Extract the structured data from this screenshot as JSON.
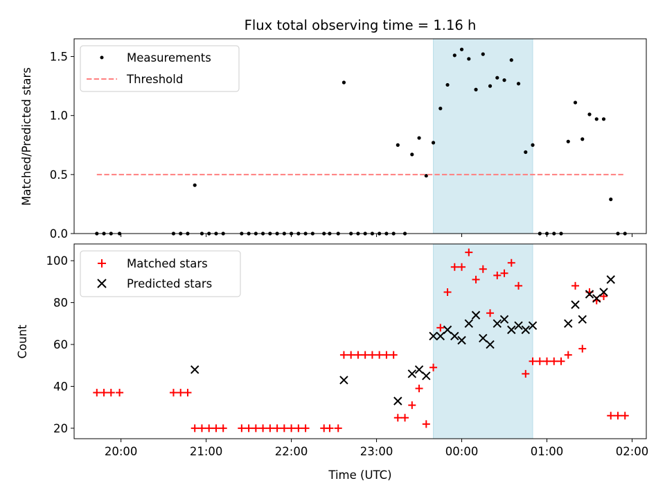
{
  "chart_data": [
    {
      "type": "scatter",
      "title": "Flux total observing time = 1.16 h",
      "ylabel": "Matched/Predicted stars",
      "xlim": [
        "19:27",
        "02:10"
      ],
      "ylim": [
        0,
        1.65
      ],
      "xticks": [
        "20:00",
        "21:00",
        "22:00",
        "23:00",
        "00:00",
        "01:00",
        "02:00"
      ],
      "yticks": [
        "0.0",
        "0.5",
        "1.0",
        "1.5"
      ],
      "legend_position": "upper-left",
      "highlight_span": [
        "23:40",
        "00:50"
      ],
      "series": [
        {
          "name": "Measurements",
          "marker": "dot",
          "color": "#000000",
          "points": [
            [
              "19:43",
              0
            ],
            [
              "19:48",
              0
            ],
            [
              "19:53",
              0
            ],
            [
              "19:59",
              0
            ],
            [
              "20:37",
              0
            ],
            [
              "20:42",
              0
            ],
            [
              "20:47",
              0
            ],
            [
              "20:52",
              0.41
            ],
            [
              "20:57",
              0
            ],
            [
              "21:02",
              0
            ],
            [
              "21:07",
              0
            ],
            [
              "21:12",
              0
            ],
            [
              "21:25",
              0
            ],
            [
              "21:30",
              0
            ],
            [
              "21:35",
              0
            ],
            [
              "21:40",
              0
            ],
            [
              "21:45",
              0
            ],
            [
              "21:50",
              0
            ],
            [
              "21:55",
              0
            ],
            [
              "22:00",
              0
            ],
            [
              "22:05",
              0
            ],
            [
              "22:10",
              0
            ],
            [
              "22:15",
              0
            ],
            [
              "22:23",
              0
            ],
            [
              "22:27",
              0
            ],
            [
              "22:33",
              0
            ],
            [
              "22:37",
              1.28
            ],
            [
              "22:42",
              0
            ],
            [
              "22:47",
              0
            ],
            [
              "22:52",
              0
            ],
            [
              "22:57",
              0
            ],
            [
              "23:02",
              0
            ],
            [
              "23:07",
              0
            ],
            [
              "23:12",
              0
            ],
            [
              "23:15",
              0.75
            ],
            [
              "23:20",
              0
            ],
            [
              "23:25",
              0.67
            ],
            [
              "23:30",
              0.81
            ],
            [
              "23:35",
              0.49
            ],
            [
              "23:40",
              0.77
            ],
            [
              "23:45",
              1.06
            ],
            [
              "23:50",
              1.26
            ],
            [
              "23:55",
              1.51
            ],
            [
              "24:00",
              1.56
            ],
            [
              "24:05",
              1.48
            ],
            [
              "24:10",
              1.22
            ],
            [
              "24:15",
              1.52
            ],
            [
              "24:20",
              1.25
            ],
            [
              "24:25",
              1.32
            ],
            [
              "24:30",
              1.3
            ],
            [
              "24:35",
              1.47
            ],
            [
              "24:40",
              1.27
            ],
            [
              "24:45",
              0.69
            ],
            [
              "24:50",
              0.75
            ],
            [
              "24:55",
              0
            ],
            [
              "25:00",
              0
            ],
            [
              "25:05",
              0
            ],
            [
              "25:10",
              0
            ],
            [
              "25:15",
              0.78
            ],
            [
              "25:20",
              1.11
            ],
            [
              "25:25",
              0.8
            ],
            [
              "25:30",
              1.01
            ],
            [
              "25:35",
              0.97
            ],
            [
              "25:40",
              0.97
            ],
            [
              "25:45",
              0.29
            ],
            [
              "25:50",
              0
            ],
            [
              "25:55",
              0
            ]
          ]
        },
        {
          "name": "Threshold",
          "marker": "dashed-line",
          "color": "#ff7f7f",
          "points": [
            [
              "19:43",
              0.5
            ],
            [
              "25:55",
              0.5
            ]
          ]
        }
      ]
    },
    {
      "type": "scatter",
      "ylabel": "Count",
      "xlabel": "Time (UTC)",
      "xlim": [
        "19:27",
        "02:10"
      ],
      "ylim": [
        15,
        108
      ],
      "xticks": [
        "20:00",
        "21:00",
        "22:00",
        "23:00",
        "00:00",
        "01:00",
        "02:00"
      ],
      "yticks": [
        "20",
        "40",
        "60",
        "80",
        "100"
      ],
      "legend_position": "upper-left",
      "highlight_span": [
        "23:40",
        "00:50"
      ],
      "series": [
        {
          "name": "Matched stars",
          "marker": "plus",
          "color": "#ff0000",
          "points": [
            [
              "19:43",
              37
            ],
            [
              "19:48",
              37
            ],
            [
              "19:53",
              37
            ],
            [
              "19:59",
              37
            ],
            [
              "20:37",
              37
            ],
            [
              "20:42",
              37
            ],
            [
              "20:47",
              37
            ],
            [
              "20:52",
              20
            ],
            [
              "20:57",
              20
            ],
            [
              "21:02",
              20
            ],
            [
              "21:07",
              20
            ],
            [
              "21:12",
              20
            ],
            [
              "21:25",
              20
            ],
            [
              "21:30",
              20
            ],
            [
              "21:35",
              20
            ],
            [
              "21:40",
              20
            ],
            [
              "21:45",
              20
            ],
            [
              "21:50",
              20
            ],
            [
              "21:55",
              20
            ],
            [
              "22:00",
              20
            ],
            [
              "22:05",
              20
            ],
            [
              "22:10",
              20
            ],
            [
              "22:23",
              20
            ],
            [
              "22:27",
              20
            ],
            [
              "22:33",
              20
            ],
            [
              "22:37",
              55
            ],
            [
              "22:42",
              55
            ],
            [
              "22:47",
              55
            ],
            [
              "22:52",
              55
            ],
            [
              "22:57",
              55
            ],
            [
              "23:02",
              55
            ],
            [
              "23:07",
              55
            ],
            [
              "23:12",
              55
            ],
            [
              "23:15",
              25
            ],
            [
              "23:20",
              25
            ],
            [
              "23:25",
              31
            ],
            [
              "23:30",
              39
            ],
            [
              "23:35",
              22
            ],
            [
              "23:40",
              49
            ],
            [
              "23:45",
              68
            ],
            [
              "23:50",
              85
            ],
            [
              "23:55",
              97
            ],
            [
              "24:00",
              97
            ],
            [
              "24:05",
              104
            ],
            [
              "24:10",
              91
            ],
            [
              "24:15",
              96
            ],
            [
              "24:20",
              75
            ],
            [
              "24:25",
              93
            ],
            [
              "24:30",
              94
            ],
            [
              "24:35",
              99
            ],
            [
              "24:40",
              88
            ],
            [
              "24:45",
              46
            ],
            [
              "24:50",
              52
            ],
            [
              "24:55",
              52
            ],
            [
              "25:00",
              52
            ],
            [
              "25:05",
              52
            ],
            [
              "25:10",
              52
            ],
            [
              "25:15",
              55
            ],
            [
              "25:20",
              88
            ],
            [
              "25:25",
              58
            ],
            [
              "25:30",
              85
            ],
            [
              "25:35",
              81
            ],
            [
              "25:40",
              83
            ],
            [
              "25:45",
              26
            ],
            [
              "25:50",
              26
            ],
            [
              "25:55",
              26
            ]
          ]
        },
        {
          "name": "Predicted stars",
          "marker": "x",
          "color": "#000000",
          "points": [
            [
              "20:52",
              48
            ],
            [
              "22:37",
              43
            ],
            [
              "23:15",
              33
            ],
            [
              "23:25",
              46
            ],
            [
              "23:30",
              48
            ],
            [
              "23:35",
              45
            ],
            [
              "23:40",
              64
            ],
            [
              "23:45",
              64
            ],
            [
              "23:50",
              67
            ],
            [
              "23:55",
              64
            ],
            [
              "24:00",
              62
            ],
            [
              "24:05",
              70
            ],
            [
              "24:10",
              74
            ],
            [
              "24:15",
              63
            ],
            [
              "24:20",
              60
            ],
            [
              "24:25",
              70
            ],
            [
              "24:30",
              72
            ],
            [
              "24:35",
              67
            ],
            [
              "24:40",
              69
            ],
            [
              "24:45",
              67
            ],
            [
              "24:50",
              69
            ],
            [
              "25:15",
              70
            ],
            [
              "25:20",
              79
            ],
            [
              "25:25",
              72
            ],
            [
              "25:30",
              84
            ],
            [
              "25:35",
              82
            ],
            [
              "25:40",
              85
            ],
            [
              "25:45",
              91
            ]
          ]
        }
      ]
    }
  ]
}
